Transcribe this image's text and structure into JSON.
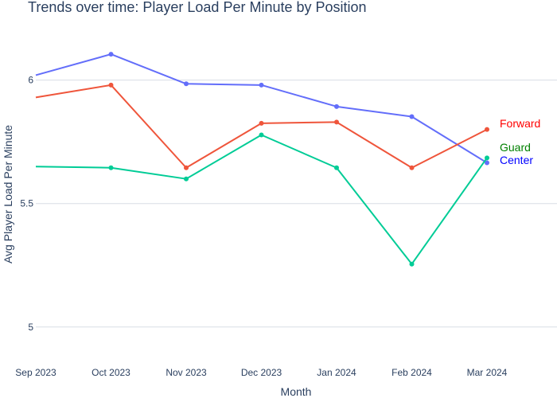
{
  "chart_data": {
    "type": "line",
    "title": "Trends over time: Player Load Per Minute by Position",
    "xlabel": "Month",
    "ylabel": "Avg Player Load Per Minute",
    "categories": [
      "Sep 2023",
      "Oct 2023",
      "Nov 2023",
      "Dec 2023",
      "Jan 2024",
      "Feb 2024",
      "Mar 2024"
    ],
    "ylim": [
      4.88,
      6.26
    ],
    "yticks": [
      5,
      5.5,
      6
    ],
    "ytick_labels": [
      "5",
      "5.5",
      "6"
    ],
    "grid": true,
    "legend": "inline end-of-line labels",
    "series": [
      {
        "name": "Center",
        "color": "#636efa",
        "label_color": "#0000ff",
        "values": [
          6.02,
          6.105,
          5.985,
          5.98,
          5.893,
          5.852,
          5.665
        ]
      },
      {
        "name": "Forward",
        "color": "#ef553b",
        "label_color": "#ff0000",
        "values": [
          5.93,
          5.98,
          5.645,
          5.825,
          5.83,
          5.645,
          5.8
        ]
      },
      {
        "name": "Guard",
        "color": "#00cc96",
        "label_color": "#008000",
        "values": [
          5.65,
          5.645,
          5.6,
          5.778,
          5.645,
          5.255,
          5.685
        ]
      }
    ]
  }
}
